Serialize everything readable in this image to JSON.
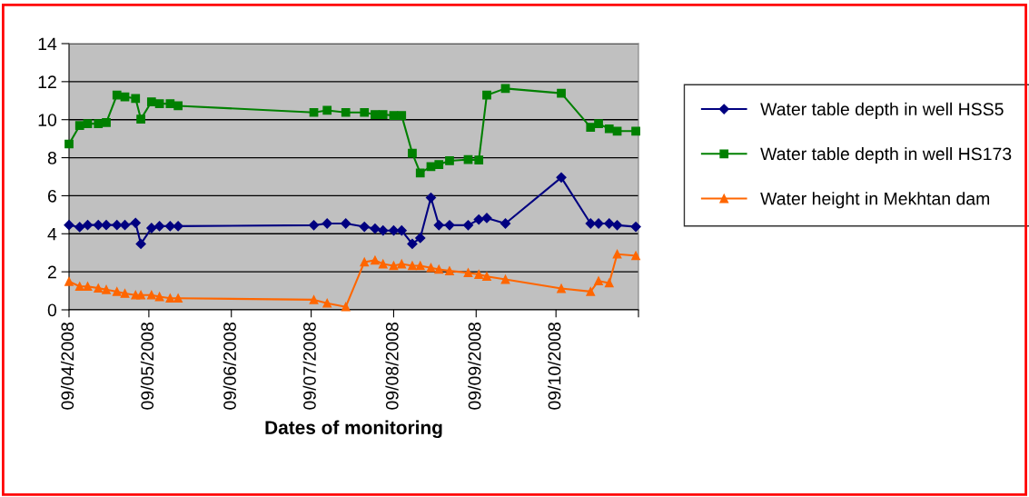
{
  "chart_data": {
    "type": "line",
    "xlabel": "Dates of monitoring",
    "x": [
      "2008-04-09",
      "2008-04-13",
      "2008-04-16",
      "2008-04-20",
      "2008-04-23",
      "2008-04-27",
      "2008-04-30",
      "2008-05-04",
      "2008-05-06",
      "2008-05-10",
      "2008-05-13",
      "2008-05-17",
      "2008-05-20",
      "2008-07-10",
      "2008-07-15",
      "2008-07-22",
      "2008-07-29",
      "2008-08-02",
      "2008-08-05",
      "2008-08-09",
      "2008-08-12",
      "2008-08-16",
      "2008-08-19",
      "2008-08-23",
      "2008-08-26",
      "2008-08-30",
      "2008-09-06",
      "2008-09-10",
      "2008-09-13",
      "2008-09-20",
      "2008-10-11",
      "2008-10-22",
      "2008-10-25",
      "2008-10-29",
      "2008-11-01",
      "2008-11-08"
    ],
    "series": [
      {
        "name": "Water table depth in well HSS5",
        "color": "#000080",
        "marker": "diamond",
        "values": [
          4.46,
          4.35,
          4.46,
          4.46,
          4.46,
          4.46,
          4.46,
          4.57,
          3.47,
          4.3,
          4.4,
          4.4,
          4.4,
          4.45,
          4.54,
          4.54,
          4.37,
          4.27,
          4.17,
          4.17,
          4.17,
          3.47,
          3.78,
          5.9,
          4.45,
          4.45,
          4.45,
          4.75,
          4.83,
          4.54,
          6.96,
          4.54,
          4.54,
          4.54,
          4.45,
          4.37
        ]
      },
      {
        "name": "Water table depth in well HS173",
        "color": "#008000",
        "marker": "square",
        "values": [
          8.72,
          9.69,
          9.79,
          9.79,
          9.85,
          11.29,
          11.2,
          11.12,
          10.03,
          10.94,
          10.84,
          10.84,
          10.73,
          10.38,
          10.49,
          10.38,
          10.38,
          10.27,
          10.27,
          10.22,
          10.22,
          8.24,
          7.2,
          7.53,
          7.64,
          7.84,
          7.9,
          7.88,
          11.29,
          11.64,
          11.39,
          9.6,
          9.79,
          9.52,
          9.4,
          9.4
        ]
      },
      {
        "name": "Water height in Mekhtan dam",
        "color": "#ff6600",
        "marker": "triangle",
        "values": [
          1.49,
          1.23,
          1.23,
          1.14,
          1.06,
          0.96,
          0.86,
          0.78,
          0.78,
          0.78,
          0.69,
          0.61,
          0.61,
          0.53,
          0.35,
          0.16,
          2.51,
          2.61,
          2.41,
          2.32,
          2.41,
          2.32,
          2.32,
          2.21,
          2.13,
          2.05,
          1.95,
          1.86,
          1.76,
          1.6,
          1.12,
          0.96,
          1.52,
          1.41,
          2.93,
          2.85
        ]
      }
    ],
    "xlim": [
      "2008-04-09",
      "2008-11-09"
    ],
    "xticks": [
      {
        "value": "2008-04-09",
        "label": "09/04/2008"
      },
      {
        "value": "2008-05-09",
        "label": "09/05/2008"
      },
      {
        "value": "2008-06-09",
        "label": "09/06/2008"
      },
      {
        "value": "2008-07-09",
        "label": "09/07/2008"
      },
      {
        "value": "2008-08-09",
        "label": "09/08/2008"
      },
      {
        "value": "2008-09-09",
        "label": "09/09/2008"
      },
      {
        "value": "2008-10-09",
        "label": "09/10/2008"
      },
      {
        "value": "2008-11-09",
        "label": null
      }
    ],
    "ylim": [
      0,
      14
    ],
    "yticks": [
      0,
      2,
      4,
      6,
      8,
      10,
      12,
      14
    ],
    "grid": "y",
    "legend": "right",
    "line_style": "solid"
  }
}
